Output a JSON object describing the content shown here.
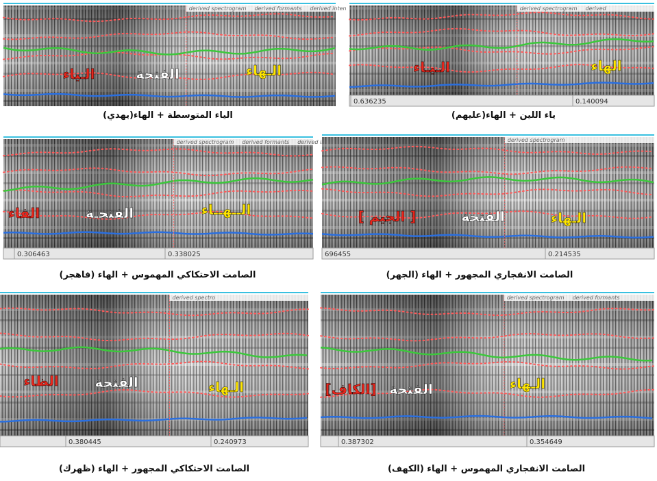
{
  "panels": [
    {
      "caption": "الياء المتوسطة + الهاء(يهدي)",
      "legend": [
        "derived spectrogram",
        "derived formants",
        "derived inten"
      ],
      "times": [],
      "labels": [
        {
          "text": "الـياء",
          "color": "#e8261c"
        },
        {
          "text": "الفتحة",
          "color": "#ffffff"
        },
        {
          "text": "الـهاء",
          "color": "#ffe600"
        }
      ]
    },
    {
      "caption": "ياء اللين + الهاء(عليهم)",
      "legend": [
        "derived spectrogram",
        "derived"
      ],
      "times": [
        "0.636235",
        "0.140094"
      ],
      "labels": [
        {
          "text": "الـيـاء",
          "color": "#e8261c"
        },
        {
          "text": "الهاء",
          "color": "#ffe600"
        }
      ]
    },
    {
      "caption": "الصامت الاحتكاكي المهموس + الهاء (فاهجر)",
      "legend": [
        "derived spectrogram",
        "derived formants",
        "derived intensity"
      ],
      "times": [
        "0.306463",
        "0.338025"
      ],
      "labels": [
        {
          "text": "الفاء",
          "color": "#e8261c"
        },
        {
          "text": "الفتحـة",
          "color": "#ffffff"
        },
        {
          "text": "الــهــاء",
          "color": "#ffe600"
        }
      ]
    },
    {
      "caption": "الصامت الانفجاري المجهور + الهاء (الجهر)",
      "legend": [
        "derived spectrogram"
      ],
      "times": [
        "696455",
        "0.214535"
      ],
      "labels": [
        {
          "text": "[ الجيم ]",
          "color": "#e8261c"
        },
        {
          "text": "الفتحة",
          "color": "#ffffff"
        },
        {
          "text": "الـهاء",
          "color": "#ffe600"
        }
      ]
    },
    {
      "caption": "الصامت الاحتكاكي المجهور + الهاء (ظهرك)",
      "legend": [
        "derived spectro"
      ],
      "times": [
        "0.380445",
        "0.240973"
      ],
      "labels": [
        {
          "text": "الظاء",
          "color": "#e8261c"
        },
        {
          "text": "الفتحة",
          "color": "#ffffff"
        },
        {
          "text": "الـهاء",
          "color": "#ffe600"
        }
      ]
    },
    {
      "caption": "الصامت الانفجاري المهموس + الهاء (الكهف)",
      "legend": [
        "derived spectrogram",
        "derived formants"
      ],
      "times": [
        "0.387302",
        "0.354649"
      ],
      "labels": [
        {
          "text": "[الكاف]",
          "color": "#e8261c"
        },
        {
          "text": "الفتحة",
          "color": "#ffffff"
        },
        {
          "text": "الـهاء",
          "color": "#ffe600"
        }
      ]
    }
  ]
}
